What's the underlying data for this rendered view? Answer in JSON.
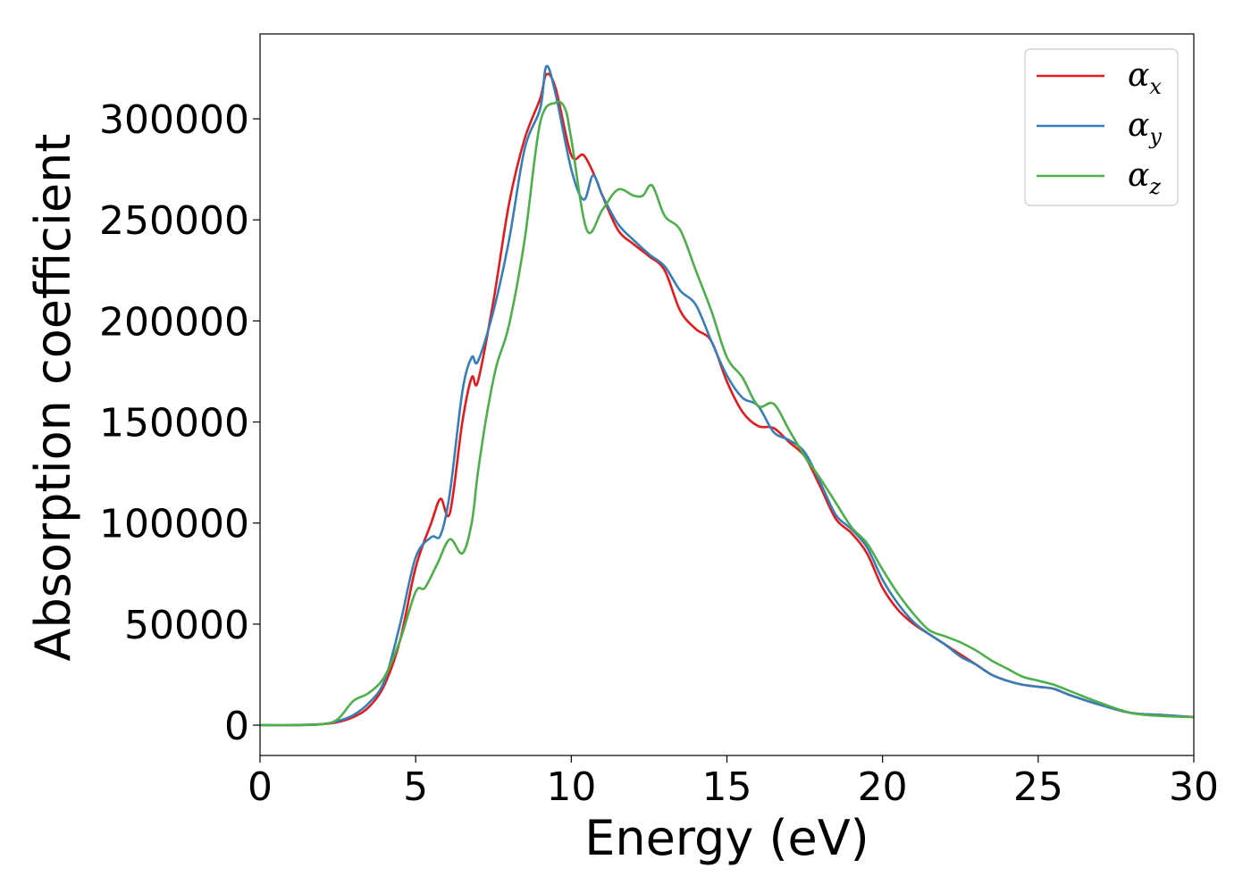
{
  "chart_data": {
    "type": "line",
    "title": "",
    "xlabel": "Energy (eV)",
    "ylabel": "Absorption coefficient",
    "xlim": [
      0,
      30
    ],
    "ylim": [
      -15000,
      342000
    ],
    "xticks": [
      0,
      5,
      10,
      15,
      20,
      25,
      30
    ],
    "xtick_labels": [
      "0",
      "5",
      "10",
      "15",
      "20",
      "25",
      "30"
    ],
    "yticks": [
      0,
      50000,
      100000,
      150000,
      200000,
      250000,
      300000
    ],
    "ytick_labels": [
      "0",
      "50000",
      "100000",
      "150000",
      "200000",
      "250000",
      "300000"
    ],
    "grid": false,
    "legend_position": "top-right",
    "series": [
      {
        "name": "αx",
        "legend_base": "α",
        "legend_sub": "x",
        "color": "#e41a1c",
        "x": [
          0,
          1,
          2,
          2.5,
          3,
          3.5,
          4,
          4.5,
          5,
          5.5,
          5.8,
          6.1,
          6.5,
          6.8,
          7,
          7.5,
          8,
          8.5,
          9,
          9.2,
          9.5,
          10,
          10.4,
          10.8,
          11,
          11.5,
          12,
          12.5,
          13,
          13.5,
          14,
          14.5,
          15,
          15.5,
          16,
          16.5,
          17,
          17.5,
          18,
          18.5,
          19,
          19.5,
          20,
          20.5,
          21,
          21.5,
          22,
          22.5,
          23,
          23.5,
          24,
          24.5,
          25,
          25.5,
          26,
          27,
          28,
          29,
          30
        ],
        "y": [
          0,
          0,
          500,
          1500,
          4000,
          9000,
          20000,
          42000,
          78000,
          100000,
          112000,
          105000,
          150000,
          172000,
          170000,
          210000,
          258000,
          290000,
          310000,
          322000,
          315000,
          282000,
          282000,
          270000,
          262000,
          245000,
          238000,
          232000,
          225000,
          205000,
          196000,
          190000,
          170000,
          155000,
          148000,
          147000,
          140000,
          133000,
          118000,
          102000,
          95000,
          85000,
          68000,
          57000,
          50000,
          45000,
          40000,
          35000,
          30000,
          25000,
          22000,
          20000,
          19000,
          18000,
          15000,
          10000,
          6000,
          5000,
          4000
        ]
      },
      {
        "name": "αy",
        "legend_base": "α",
        "legend_sub": "y",
        "color": "#377eb8",
        "x": [
          0,
          1,
          2,
          2.5,
          3,
          3.5,
          4,
          4.5,
          5,
          5.5,
          5.8,
          6.1,
          6.5,
          6.8,
          7,
          7.5,
          8,
          8.5,
          9,
          9.2,
          9.5,
          10,
          10.4,
          10.7,
          11,
          11.5,
          12,
          12.5,
          13,
          13.5,
          14,
          14.5,
          15,
          15.5,
          16,
          16.5,
          17,
          17.5,
          18,
          18.5,
          19,
          19.5,
          20,
          20.5,
          21,
          21.5,
          22,
          22.5,
          23,
          23.5,
          24,
          24.5,
          25,
          25.5,
          26,
          27,
          28,
          29,
          30
        ],
        "y": [
          0,
          0,
          500,
          2000,
          5000,
          11000,
          22000,
          50000,
          83000,
          93000,
          94000,
          115000,
          165000,
          182000,
          180000,
          205000,
          240000,
          285000,
          305000,
          326000,
          312000,
          275000,
          260000,
          272000,
          262000,
          248000,
          240000,
          233000,
          227000,
          215000,
          208000,
          190000,
          173000,
          162000,
          158000,
          145000,
          141000,
          135000,
          120000,
          104000,
          97000,
          88000,
          72000,
          60000,
          51000,
          45000,
          40000,
          34000,
          30000,
          25000,
          22000,
          20000,
          19000,
          18000,
          15000,
          10000,
          6000,
          5000,
          4000
        ]
      },
      {
        "name": "αz",
        "legend_base": "α",
        "legend_sub": "z",
        "color": "#4daf4a",
        "x": [
          0,
          1,
          2,
          2.5,
          3,
          3.5,
          4,
          4.5,
          5,
          5.3,
          5.7,
          6.1,
          6.5,
          6.8,
          7,
          7.3,
          7.6,
          8,
          8.5,
          9,
          9.5,
          9.8,
          10,
          10.5,
          11,
          11.5,
          12,
          12.3,
          12.6,
          13,
          13.5,
          14,
          14.5,
          15,
          15.5,
          16,
          16.5,
          17,
          17.5,
          18,
          18.5,
          19,
          19.5,
          20,
          20.5,
          21,
          21.5,
          22,
          22.5,
          23,
          23.5,
          24,
          24.5,
          25,
          25.5,
          26,
          27,
          28,
          29,
          30
        ],
        "y": [
          0,
          0,
          500,
          3000,
          12000,
          16000,
          24000,
          42000,
          66000,
          68000,
          80000,
          92000,
          85000,
          100000,
          125000,
          155000,
          178000,
          198000,
          240000,
          298000,
          308000,
          305000,
          290000,
          245000,
          255000,
          265000,
          262000,
          262000,
          267000,
          252000,
          245000,
          225000,
          205000,
          182000,
          172000,
          158000,
          159000,
          146000,
          133000,
          122000,
          110000,
          98000,
          90000,
          77000,
          65000,
          55000,
          47000,
          44000,
          41000,
          37000,
          32000,
          28000,
          24000,
          22000,
          20000,
          17000,
          11000,
          6000,
          4500,
          4000
        ]
      }
    ]
  }
}
